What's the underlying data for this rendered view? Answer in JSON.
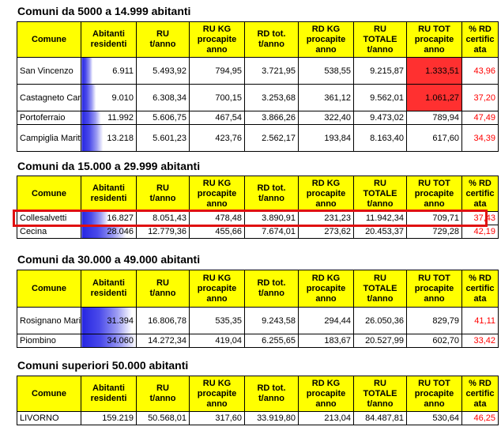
{
  "headers": [
    "Comune",
    "Abitanti residenti",
    "RU t/anno",
    "RU KG procapite anno",
    "RD tot. t/anno",
    "RD KG procapite anno",
    "RU TOTALE t/anno",
    "RU TOT procapite anno",
    "% RD certific ata"
  ],
  "header_lines": [
    [
      "Comune"
    ],
    [
      "Abitanti",
      "residenti"
    ],
    [
      "RU",
      "t/anno"
    ],
    [
      "RU KG",
      "procapite",
      "anno"
    ],
    [
      "RD tot.",
      "t/anno"
    ],
    [
      "RD KG",
      "procapite",
      "anno"
    ],
    [
      "RU",
      "TOTALE",
      "t/anno"
    ],
    [
      "RU TOT",
      "procapite",
      "anno"
    ],
    [
      "% RD",
      "certific",
      "ata"
    ]
  ],
  "sections": [
    {
      "title": "Comuni da 5000 a 14.999 abitanti",
      "rows": [
        {
          "comune": "San Vincenzo",
          "abitanti": "6.911",
          "abitanti_fraction": 0.2,
          "ru": "5.493,92",
          "ru_kg": "794,95",
          "rd_tot": "3.721,95",
          "rd_kg": "538,55",
          "ru_totale": "9.215,87",
          "ru_tot_pc": "1.333,51",
          "ru_tot_pc_highlight": true,
          "pct_rd": "43,96"
        },
        {
          "comune": "Castagneto Carducci",
          "abitanti": "9.010",
          "abitanti_fraction": 0.26,
          "ru": "6.308,34",
          "ru_kg": "700,15",
          "rd_tot": "3.253,68",
          "rd_kg": "361,12",
          "ru_totale": "9.562,01",
          "ru_tot_pc": "1.061,27",
          "ru_tot_pc_highlight": true,
          "pct_rd": "37,20"
        },
        {
          "comune": "Portoferraio",
          "abitanti": "11.992",
          "abitanti_fraction": 0.35,
          "ru": "5.606,75",
          "ru_kg": "467,54",
          "rd_tot": "3.866,26",
          "rd_kg": "322,40",
          "ru_totale": "9.473,02",
          "ru_tot_pc": "789,94",
          "ru_tot_pc_highlight": false,
          "pct_rd": "47,49"
        },
        {
          "comune": "Campiglia Marittima",
          "abitanti": "13.218",
          "abitanti_fraction": 0.39,
          "ru": "5.601,23",
          "ru_kg": "423,76",
          "rd_tot": "2.562,17",
          "rd_kg": "193,84",
          "ru_totale": "8.163,40",
          "ru_tot_pc": "617,60",
          "ru_tot_pc_highlight": false,
          "pct_rd": "34,39"
        }
      ]
    },
    {
      "title": "Comuni da 15.000 a 29.999 abitanti",
      "rows": [
        {
          "comune": "Collesalvetti",
          "abitanti": "16.827",
          "abitanti_fraction": 0.49,
          "ru": "8.051,43",
          "ru_kg": "478,48",
          "rd_tot": "3.890,91",
          "rd_kg": "231,23",
          "ru_totale": "11.942,34",
          "ru_tot_pc": "709,71",
          "ru_tot_pc_highlight": false,
          "pct_rd": "37,43",
          "outlined": true
        },
        {
          "comune": "Cecina",
          "abitanti": "28.046",
          "abitanti_fraction": 0.82,
          "ru": "12.779,36",
          "ru_kg": "455,66",
          "rd_tot": "7.674,01",
          "rd_kg": "273,62",
          "ru_totale": "20.453,37",
          "ru_tot_pc": "729,28",
          "ru_tot_pc_highlight": false,
          "pct_rd": "42,19"
        }
      ]
    },
    {
      "title": "Comuni da 30.000 a 49.000 abitanti",
      "rows": [
        {
          "comune": "Rosignano Marittimo",
          "abitanti": "31.394",
          "abitanti_fraction": 0.92,
          "ru": "16.806,78",
          "ru_kg": "535,35",
          "rd_tot": "9.243,58",
          "rd_kg": "294,44",
          "ru_totale": "26.050,36",
          "ru_tot_pc": "829,79",
          "ru_tot_pc_highlight": false,
          "pct_rd": "41,11"
        },
        {
          "comune": "Piombino",
          "abitanti": "34.060",
          "abitanti_fraction": 1.0,
          "ru": "14.272,34",
          "ru_kg": "419,04",
          "rd_tot": "6.255,65",
          "rd_kg": "183,67",
          "ru_totale": "20.527,99",
          "ru_tot_pc": "602,70",
          "ru_tot_pc_highlight": false,
          "pct_rd": "33,42"
        }
      ]
    },
    {
      "title": "Comuni superiori 50.000 abitanti",
      "rows": [
        {
          "comune": "LIVORNO",
          "abitanti": "159.219",
          "abitanti_fraction": 0.0,
          "ru": "50.568,01",
          "ru_kg": "317,60",
          "rd_tot": "33.919,80",
          "rd_kg": "213,04",
          "ru_totale": "84.487,81",
          "ru_tot_pc": "530,64",
          "ru_tot_pc_highlight": false,
          "pct_rd": "46,25"
        }
      ]
    }
  ]
}
